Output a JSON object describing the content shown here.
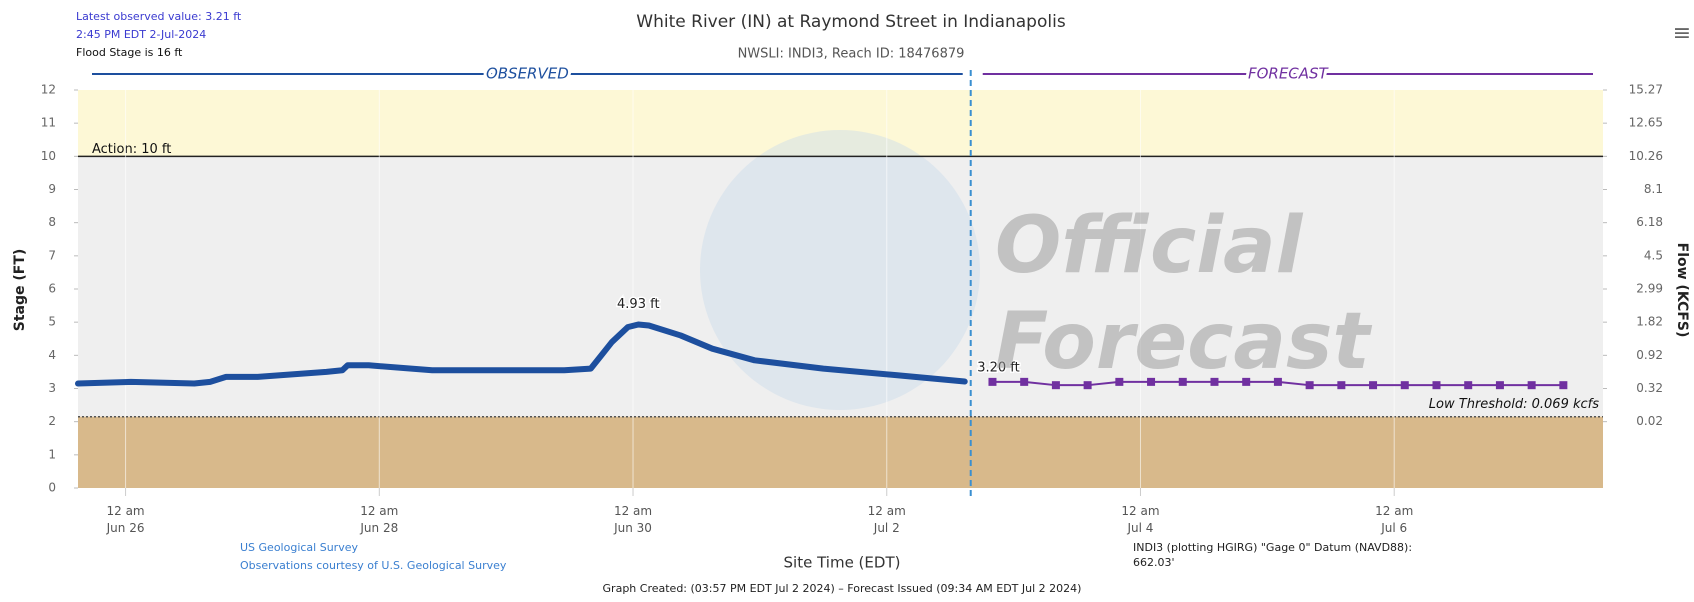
{
  "header": {
    "latest": "Latest observed value: 3.21 ft",
    "latest_time": "2:45 PM EDT 2-Jul-2024",
    "flood_stage": "Flood Stage is 16 ft",
    "menu": "≡"
  },
  "chart_data": {
    "type": "line",
    "title": "White River (IN) at Raymond Street in Indianapolis",
    "subtitle": "NWSLI: INDI3, Reach ID: 18476879",
    "xlabel": "Site Time (EDT)",
    "ylabel": "Stage (FT)",
    "y2label": "Flow (KCFS)",
    "watermark": "Official\nForecast",
    "xlim": [
      "2024-06-25T15:00",
      "2024-07-07T15:30"
    ],
    "xticks": [
      {
        "value": "2024-06-26T00:00",
        "label": "12 am\nJun 26"
      },
      {
        "value": "2024-06-28T00:00",
        "label": "12 am\nJun 28"
      },
      {
        "value": "2024-06-30T00:00",
        "label": "12 am\nJun 30"
      },
      {
        "value": "2024-07-02T00:00",
        "label": "12 am\nJul 2"
      },
      {
        "value": "2024-07-04T00:00",
        "label": "12 am\nJul 4"
      },
      {
        "value": "2024-07-06T00:00",
        "label": "12 am\nJul 6"
      }
    ],
    "ylim": [
      0,
      12
    ],
    "yticks": [
      0,
      1,
      2,
      3,
      4,
      5,
      6,
      7,
      8,
      9,
      10,
      11,
      12
    ],
    "y2ticks": [
      {
        "stage": 2,
        "flow": 0.02
      },
      {
        "stage": 3,
        "flow": 0.32
      },
      {
        "stage": 4,
        "flow": 0.92
      },
      {
        "stage": 5,
        "flow": 1.82
      },
      {
        "stage": 6,
        "flow": 2.99
      },
      {
        "stage": 7,
        "flow": 4.5
      },
      {
        "stage": 8,
        "flow": 6.18
      },
      {
        "stage": 9,
        "flow": 8.1
      },
      {
        "stage": 10,
        "flow": 10.26
      },
      {
        "stage": 11,
        "flow": 12.65
      },
      {
        "stage": 12,
        "flow": 15.27
      }
    ],
    "action": 10,
    "action_label": "Action: 10 ft",
    "action_color": "#fdf8d6",
    "low": 2.15,
    "low_label": "Low Threshold: 0.069 kcfs",
    "low_color": "#d8b98b",
    "normal_color": "#efefef",
    "series": [
      {
        "name": "OBSERVED",
        "color": "#1d4f9e",
        "x": [
          "2024-06-25T15:00",
          "2024-06-26T01:00",
          "2024-06-26T13:00",
          "2024-06-26T16:00",
          "2024-06-26T19:00",
          "2024-06-27T01:00",
          "2024-06-27T14:00",
          "2024-06-27T17:00",
          "2024-06-27T18:00",
          "2024-06-27T22:00",
          "2024-06-28T10:00",
          "2024-06-29T03:00",
          "2024-06-29T11:00",
          "2024-06-29T16:00",
          "2024-06-29T18:00",
          "2024-06-29T20:00",
          "2024-06-29T23:00",
          "2024-06-30T01:00",
          "2024-06-30T03:00",
          "2024-06-30T09:00",
          "2024-06-30T15:00",
          "2024-06-30T23:00",
          "2024-07-01T12:00",
          "2024-07-02T02:00",
          "2024-07-02T14:45"
        ],
        "values": [
          3.15,
          3.2,
          3.15,
          3.2,
          3.35,
          3.35,
          3.5,
          3.55,
          3.7,
          3.7,
          3.55,
          3.55,
          3.55,
          3.6,
          4.0,
          4.4,
          4.85,
          4.93,
          4.9,
          4.6,
          4.2,
          3.85,
          3.6,
          3.4,
          3.21
        ],
        "value_labels": [
          null,
          null,
          null,
          null,
          null,
          null,
          null,
          null,
          null,
          null,
          null,
          null,
          null,
          null,
          null,
          null,
          null,
          "4.93 ft",
          null,
          null,
          null,
          null,
          null,
          null,
          null
        ]
      },
      {
        "name": "FORECAST",
        "color": "#7030a0",
        "x": [
          "2024-07-02T20:00",
          "2024-07-03T02:00",
          "2024-07-03T08:00",
          "2024-07-03T14:00",
          "2024-07-03T20:00",
          "2024-07-04T02:00",
          "2024-07-04T08:00",
          "2024-07-04T14:00",
          "2024-07-04T20:00",
          "2024-07-05T02:00",
          "2024-07-05T08:00",
          "2024-07-05T14:00",
          "2024-07-05T20:00",
          "2024-07-06T02:00",
          "2024-07-06T08:00",
          "2024-07-06T14:00",
          "2024-07-06T20:00",
          "2024-07-07T02:00",
          "2024-07-07T08:00"
        ],
        "values": [
          3.2,
          3.2,
          3.1,
          3.1,
          3.2,
          3.2,
          3.2,
          3.2,
          3.2,
          3.2,
          3.1,
          3.1,
          3.1,
          3.1,
          3.1,
          3.1,
          3.1,
          3.1,
          3.1
        ],
        "value_labels": [
          "3.20 ft",
          null,
          null,
          null,
          null,
          null,
          null,
          null,
          null,
          null,
          null,
          null,
          null,
          null,
          null,
          null,
          null,
          null,
          null
        ]
      }
    ]
  },
  "footer": {
    "usgs": "US Geological Survey",
    "courtesy": "Observations courtesy of U.S. Geological Survey",
    "datum": "INDI3 (plotting HGIRG) \"Gage 0\" Datum (NAVD88):\n662.03'",
    "created": "Graph Created: (03:57 PM EDT Jul 2 2024) – Forecast Issued (09:34 AM EDT Jul 2 2024)"
  }
}
